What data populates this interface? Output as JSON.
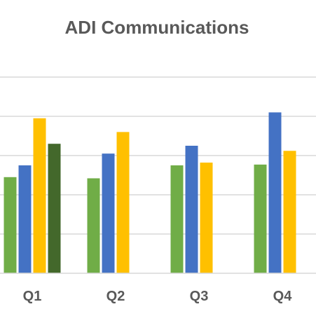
{
  "chart_data": {
    "type": "bar",
    "title": "ADI Communications",
    "categories": [
      "Q1",
      "Q2",
      "Q3",
      "Q4"
    ],
    "ylim": [
      0,
      5.5
    ],
    "grid": true,
    "series": [
      {
        "color": "#70AD47",
        "values": [
          2.45,
          2.42,
          2.75,
          2.77
        ]
      },
      {
        "color": "#4472C4",
        "values": [
          2.75,
          3.05,
          3.25,
          4.1
        ]
      },
      {
        "color": "#FFC000",
        "values": [
          3.95,
          3.6,
          2.82,
          3.12
        ]
      },
      {
        "color": "#43682B",
        "values": [
          3.3,
          null,
          null,
          null
        ]
      }
    ]
  }
}
